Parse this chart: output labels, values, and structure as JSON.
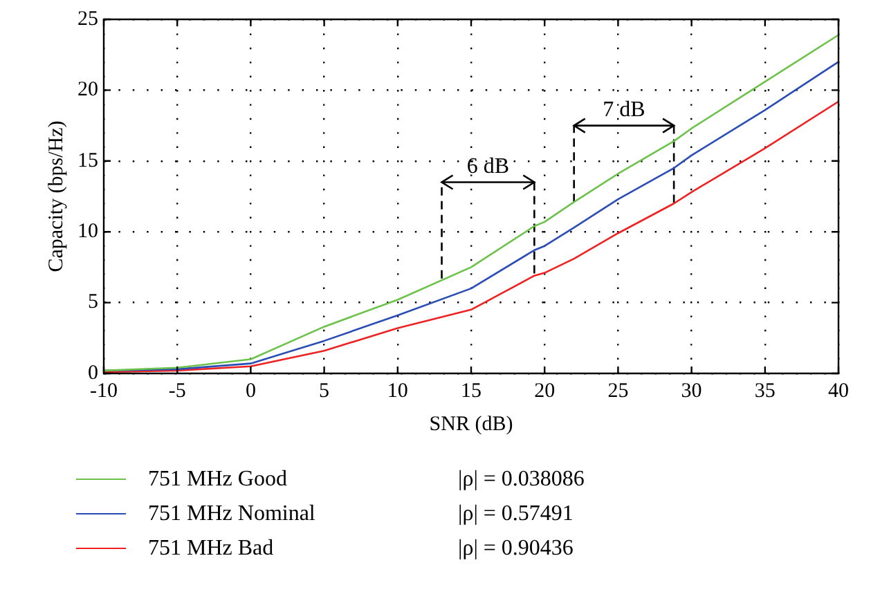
{
  "chart_data": {
    "type": "line",
    "xlabel": "SNR (dB)",
    "ylabel": "Capacity (bps/Hz)",
    "x": [
      -10,
      -5,
      0,
      5,
      10,
      15,
      19.3,
      20,
      22,
      25,
      28.8,
      30,
      35,
      40
    ],
    "series": [
      {
        "name": "751 MHz Good",
        "color": "#6cc24a",
        "values": [
          0.2,
          0.4,
          1.0,
          3.3,
          5.2,
          7.5,
          10.4,
          10.7,
          12.1,
          14.1,
          16.4,
          17.3,
          20.6,
          23.9
        ]
      },
      {
        "name": "751 MHz Nominal",
        "color": "#2a4db5",
        "values": [
          0.2,
          0.3,
          0.7,
          2.3,
          4.1,
          6.0,
          8.7,
          9.0,
          10.3,
          12.3,
          14.5,
          15.4,
          18.6,
          22.0
        ]
      },
      {
        "name": "751 MHz Bad",
        "color": "#ee2222",
        "values": [
          0.1,
          0.2,
          0.5,
          1.6,
          3.2,
          4.5,
          6.9,
          7.1,
          8.1,
          9.9,
          12.0,
          12.8,
          15.9,
          19.2
        ]
      },
      {
        "type": "line",
        "color": "#000000",
        "line_style": "dashed",
        "x": [
          13,
          13,
          19.3,
          19.3
        ],
        "values": [
          6.7,
          13.5,
          13.5,
          6.9
        ]
      },
      {
        "type": "line",
        "color": "#000000",
        "line_style": "dashed",
        "x": [
          22,
          22,
          28.8,
          28.8
        ],
        "values": [
          12.1,
          17.5,
          17.5,
          12.0
        ]
      }
    ],
    "annotations": [
      {
        "text": "6 dB",
        "x": 16.15,
        "y": 13.5
      },
      {
        "text": "7 dB",
        "x": 25.4,
        "y": 17.5
      },
      "|ρ| = 0.038086",
      "|ρ| = 0.57491",
      "|ρ| = 0.90436"
    ],
    "xlim": [
      -10,
      40
    ],
    "xticks": [
      -10,
      -5,
      0,
      5,
      10,
      15,
      20,
      25,
      30,
      35,
      40
    ],
    "ylim": [
      0,
      25
    ],
    "yticks": [
      0,
      5,
      10,
      15,
      20,
      25
    ],
    "grid": true,
    "legend": "bottom",
    "marker": "none",
    "line_style": "solid"
  }
}
